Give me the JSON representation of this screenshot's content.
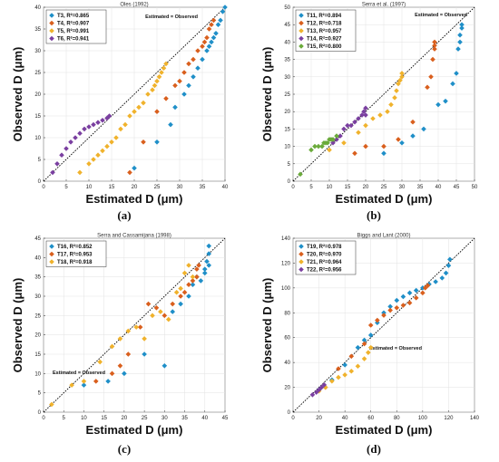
{
  "colors": {
    "blue": "#1f8fc8",
    "orange": "#d95f1d",
    "yellow": "#f0b22c",
    "purple": "#7a3fa0",
    "green": "#6aaa3a"
  },
  "chart_data": [
    {
      "type": "scatter",
      "caption": "(a)",
      "title": "Oles (1992)",
      "xlabel": "Estimated D (μm)",
      "ylabel": "Observed D (μm)",
      "xlim": [
        0,
        40
      ],
      "ylim": [
        0,
        40
      ],
      "xticks": [
        0,
        5,
        10,
        15,
        20,
        25,
        30,
        35,
        40
      ],
      "yticks": [
        0,
        5,
        10,
        15,
        20,
        25,
        30,
        35,
        40
      ],
      "reference_line": "Estimated = Observed",
      "legend_position": "top-left",
      "grid": true,
      "series": [
        {
          "name": "T3,  R²=0.865",
          "color": "blue",
          "points": [
            [
              20,
              3
            ],
            [
              25,
              9
            ],
            [
              28,
              13
            ],
            [
              29,
              17
            ],
            [
              31,
              20
            ],
            [
              32,
              22
            ],
            [
              33,
              24
            ],
            [
              34,
              26
            ],
            [
              35,
              28
            ],
            [
              36,
              30
            ],
            [
              36.5,
              31
            ],
            [
              37,
              32
            ],
            [
              37.5,
              33
            ],
            [
              38,
              34
            ],
            [
              38.5,
              36
            ],
            [
              39,
              37
            ],
            [
              39.5,
              39
            ],
            [
              40,
              40
            ]
          ]
        },
        {
          "name": "T4,  R²=0.907",
          "color": "orange",
          "points": [
            [
              19,
              2
            ],
            [
              22,
              9
            ],
            [
              25,
              16
            ],
            [
              27,
              19
            ],
            [
              29,
              22
            ],
            [
              30,
              23
            ],
            [
              31,
              25
            ],
            [
              32,
              27
            ],
            [
              33,
              28
            ],
            [
              34,
              30
            ],
            [
              35,
              31
            ],
            [
              35.5,
              32
            ],
            [
              36,
              33
            ],
            [
              36.5,
              35
            ],
            [
              37,
              36
            ],
            [
              37.5,
              37
            ]
          ]
        },
        {
          "name": "T5,  R²=0.991",
          "color": "yellow",
          "points": [
            [
              8,
              2
            ],
            [
              10,
              4
            ],
            [
              11,
              5
            ],
            [
              12,
              6
            ],
            [
              13,
              7
            ],
            [
              14,
              8
            ],
            [
              15,
              9
            ],
            [
              16,
              10
            ],
            [
              17,
              12
            ],
            [
              18,
              13
            ],
            [
              19,
              15
            ],
            [
              20,
              16
            ],
            [
              21,
              17
            ],
            [
              22,
              18
            ],
            [
              23,
              20
            ],
            [
              24,
              21
            ],
            [
              24.5,
              22
            ],
            [
              25,
              23
            ],
            [
              25.5,
              24
            ],
            [
              26,
              25
            ],
            [
              26.5,
              26
            ],
            [
              27,
              27
            ]
          ]
        },
        {
          "name": "T6,  R²=0.941",
          "color": "purple",
          "points": [
            [
              2,
              2
            ],
            [
              3,
              4
            ],
            [
              4,
              6
            ],
            [
              5,
              7.5
            ],
            [
              6,
              9
            ],
            [
              7,
              10
            ],
            [
              8,
              11
            ],
            [
              9,
              12
            ],
            [
              10,
              12.5
            ],
            [
              11,
              13
            ],
            [
              12,
              13.5
            ],
            [
              13,
              14
            ],
            [
              14,
              14.5
            ],
            [
              14.5,
              15
            ]
          ]
        }
      ]
    },
    {
      "type": "scatter",
      "caption": "(b)",
      "title": "Serra et al. (1997)",
      "xlabel": "Estimated D (μm)",
      "ylabel": "Observed D (μm)",
      "xlim": [
        0,
        50
      ],
      "ylim": [
        0,
        50
      ],
      "xticks": [
        0,
        5,
        10,
        15,
        20,
        25,
        30,
        35,
        40,
        45,
        50
      ],
      "yticks": [
        0,
        5,
        10,
        15,
        20,
        25,
        30,
        35,
        40,
        45,
        50
      ],
      "reference_line": "Estimated = Observed",
      "legend_position": "top-left",
      "grid": true,
      "series": [
        {
          "name": "T11,  R²=0.894",
          "color": "blue",
          "points": [
            [
              25,
              8
            ],
            [
              30,
              11
            ],
            [
              33,
              13
            ],
            [
              36,
              15
            ],
            [
              40,
              22
            ],
            [
              42,
              23
            ],
            [
              44,
              28
            ],
            [
              45,
              31
            ],
            [
              45.5,
              38
            ],
            [
              46,
              40
            ],
            [
              46,
              42
            ],
            [
              46.5,
              44
            ],
            [
              46.5,
              45
            ]
          ]
        },
        {
          "name": "T12,  R²=0.718",
          "color": "orange",
          "points": [
            [
              17,
              8
            ],
            [
              20,
              10
            ],
            [
              25,
              10
            ],
            [
              29,
              12
            ],
            [
              33,
              17
            ],
            [
              37,
              27
            ],
            [
              38,
              30
            ],
            [
              38.5,
              35
            ],
            [
              39,
              38
            ],
            [
              39,
              39
            ],
            [
              39,
              40
            ]
          ]
        },
        {
          "name": "T13,  R²=0.957",
          "color": "yellow",
          "points": [
            [
              10,
              9
            ],
            [
              14,
              11
            ],
            [
              18,
              14
            ],
            [
              20,
              16
            ],
            [
              22,
              18
            ],
            [
              24,
              19
            ],
            [
              26,
              20
            ],
            [
              27,
              22
            ],
            [
              28,
              24
            ],
            [
              28.5,
              26
            ],
            [
              29,
              28
            ],
            [
              29.5,
              29
            ],
            [
              30,
              30
            ],
            [
              30,
              31
            ]
          ]
        },
        {
          "name": "T14,  R²=0.927",
          "color": "purple",
          "points": [
            [
              11,
              11
            ],
            [
              12,
              12
            ],
            [
              13,
              13
            ],
            [
              14,
              15
            ],
            [
              15,
              16
            ],
            [
              16,
              16
            ],
            [
              17,
              17
            ],
            [
              18,
              18
            ],
            [
              19,
              19
            ],
            [
              19.5,
              20
            ],
            [
              20,
              21
            ],
            [
              20,
              19
            ]
          ]
        },
        {
          "name": "T15,  R²=0.800",
          "color": "green",
          "points": [
            [
              2,
              2
            ],
            [
              5,
              9
            ],
            [
              6,
              10
            ],
            [
              7,
              10
            ],
            [
              8,
              10
            ],
            [
              8.5,
              11
            ],
            [
              9,
              11
            ],
            [
              9.5,
              11
            ],
            [
              10,
              12
            ],
            [
              10.5,
              12
            ],
            [
              11,
              12
            ],
            [
              12,
              13
            ]
          ]
        }
      ]
    },
    {
      "type": "scatter",
      "caption": "(c)",
      "title": "Serra and Cassamijana (1998)",
      "xlabel": "Estimated D (μm)",
      "ylabel": "Observed D (μm)",
      "xlim": [
        0,
        45
      ],
      "ylim": [
        0,
        45
      ],
      "xticks": [
        0,
        5,
        10,
        15,
        20,
        25,
        30,
        35,
        40,
        45
      ],
      "yticks": [
        0,
        5,
        10,
        15,
        20,
        25,
        30,
        35,
        40,
        45
      ],
      "reference_line": "Estimated = Observed",
      "legend_position": "top-left",
      "grid": true,
      "series": [
        {
          "name": "T16,  R²=0.852",
          "color": "blue",
          "points": [
            [
              10,
              7
            ],
            [
              16,
              8
            ],
            [
              20,
              10
            ],
            [
              25,
              15
            ],
            [
              30,
              12
            ],
            [
              32,
              26
            ],
            [
              34,
              28
            ],
            [
              36,
              30
            ],
            [
              37,
              33
            ],
            [
              38,
              35
            ],
            [
              39,
              34
            ],
            [
              40,
              37
            ],
            [
              40.5,
              39
            ],
            [
              41,
              41
            ],
            [
              41,
              43
            ],
            [
              41,
              38
            ],
            [
              40,
              36
            ]
          ]
        },
        {
          "name": "T17,  R²=0.953",
          "color": "orange",
          "points": [
            [
              13,
              8
            ],
            [
              17,
              10
            ],
            [
              19,
              12
            ],
            [
              21,
              15
            ],
            [
              24,
              22
            ],
            [
              26,
              28
            ],
            [
              28,
              27
            ],
            [
              30,
              25
            ],
            [
              32,
              28
            ],
            [
              34,
              30
            ],
            [
              35,
              31
            ],
            [
              36,
              33
            ],
            [
              37,
              34
            ],
            [
              38,
              35
            ],
            [
              38,
              37
            ],
            [
              38.5,
              38
            ]
          ]
        },
        {
          "name": "T18,  R²=0.918",
          "color": "yellow",
          "points": [
            [
              2,
              2
            ],
            [
              7,
              7
            ],
            [
              10,
              8
            ],
            [
              14,
              13
            ],
            [
              17,
              17
            ],
            [
              19,
              19
            ],
            [
              21,
              21
            ],
            [
              23,
              22
            ],
            [
              25,
              19
            ],
            [
              27,
              25
            ],
            [
              29,
              26
            ],
            [
              31,
              24
            ],
            [
              33,
              31
            ],
            [
              34,
              32
            ],
            [
              35,
              36
            ],
            [
              36,
              38
            ],
            [
              37,
              35
            ]
          ]
        }
      ]
    },
    {
      "type": "scatter",
      "caption": "(d)",
      "title": "Biggs and Lant (2000)",
      "xlabel": "Estimated D (μm)",
      "ylabel": "Observed D (μm)",
      "xlim": [
        0,
        140
      ],
      "ylim": [
        0,
        140
      ],
      "xticks": [
        0,
        20,
        40,
        60,
        80,
        100,
        120,
        140
      ],
      "yticks": [
        0,
        20,
        40,
        60,
        80,
        100,
        120,
        140
      ],
      "reference_line": "Estimated = Observed",
      "legend_position": "top-left",
      "grid": true,
      "series": [
        {
          "name": "T19,  R²=0.978",
          "color": "blue",
          "points": [
            [
              20,
              18
            ],
            [
              30,
              26
            ],
            [
              40,
              38
            ],
            [
              50,
              52
            ],
            [
              55,
              58
            ],
            [
              60,
              62
            ],
            [
              65,
              72
            ],
            [
              70,
              80
            ],
            [
              75,
              85
            ],
            [
              80,
              90
            ],
            [
              85,
              93
            ],
            [
              90,
              96
            ],
            [
              95,
              98
            ],
            [
              100,
              100
            ],
            [
              105,
              103
            ],
            [
              110,
              105
            ],
            [
              115,
              108
            ],
            [
              118,
              112
            ],
            [
              120,
              118
            ],
            [
              121,
              123
            ]
          ]
        },
        {
          "name": "T20,  R²=0.970",
          "color": "orange",
          "points": [
            [
              25,
              20
            ],
            [
              35,
              35
            ],
            [
              45,
              45
            ],
            [
              55,
              55
            ],
            [
              60,
              70
            ],
            [
              65,
              74
            ],
            [
              70,
              78
            ],
            [
              75,
              82
            ],
            [
              80,
              84
            ],
            [
              85,
              86
            ],
            [
              90,
              88
            ],
            [
              95,
              92
            ],
            [
              100,
              96
            ],
            [
              102,
              100
            ],
            [
              104,
              102
            ]
          ]
        },
        {
          "name": "T21,  R²=0.964",
          "color": "yellow",
          "points": [
            [
              20,
              17
            ],
            [
              25,
              20
            ],
            [
              30,
              25
            ],
            [
              35,
              28
            ],
            [
              40,
              30
            ],
            [
              45,
              33
            ],
            [
              50,
              37
            ],
            [
              55,
              43
            ],
            [
              58,
              48
            ],
            [
              60,
              52
            ]
          ]
        },
        {
          "name": "T22,  R²=0.956",
          "color": "purple",
          "points": [
            [
              15,
              14
            ],
            [
              18,
              16
            ],
            [
              20,
              18
            ],
            [
              22,
              20
            ],
            [
              24,
              22
            ]
          ]
        }
      ]
    }
  ]
}
